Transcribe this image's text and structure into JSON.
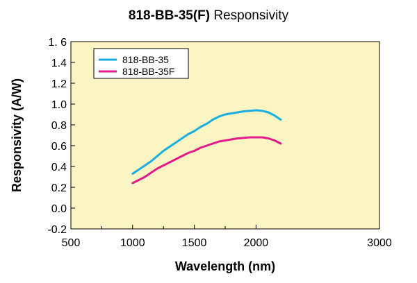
{
  "chart_data": {
    "type": "line",
    "title": "818-BB-35(F) Responsivity",
    "title_bold": "818-BB-35(F)",
    "title_rest": " Responsivity",
    "xlabel": "Wavelength (nm)",
    "ylabel": "Responsivity (A/W)",
    "xlim": [
      500,
      3000
    ],
    "ylim": [
      -0.2,
      1.6
    ],
    "xticks": [
      500,
      1000,
      1500,
      2000,
      3000
    ],
    "xtick_labels": [
      "500",
      "1000",
      "1500",
      "2000",
      "3000"
    ],
    "yticks": [
      1.6,
      1.4,
      1.2,
      1.0,
      0.8,
      0.6,
      0.4,
      0.2,
      0.0,
      -0.2
    ],
    "ytick_labels": [
      "1. 6",
      "1.4",
      "1.2",
      "1.0",
      "0.8",
      "0.6",
      "0.4",
      "0.2",
      "0.0",
      "-0.2"
    ],
    "legend_position": "top-left",
    "plot_background": "#faf5c3",
    "series": [
      {
        "name": "818-BB-35",
        "color": "#1aaee0",
        "x": [
          1000,
          1050,
          1100,
          1150,
          1200,
          1250,
          1300,
          1350,
          1400,
          1450,
          1500,
          1550,
          1600,
          1650,
          1700,
          1750,
          1800,
          1850,
          1900,
          1950,
          2000,
          2050,
          2100,
          2150,
          2200
        ],
        "values": [
          0.33,
          0.37,
          0.41,
          0.45,
          0.5,
          0.55,
          0.59,
          0.63,
          0.67,
          0.71,
          0.74,
          0.78,
          0.81,
          0.85,
          0.88,
          0.9,
          0.91,
          0.92,
          0.93,
          0.935,
          0.94,
          0.935,
          0.92,
          0.89,
          0.85
        ]
      },
      {
        "name": "818-BB-35F",
        "color": "#e6198a",
        "x": [
          1000,
          1050,
          1100,
          1150,
          1200,
          1250,
          1300,
          1350,
          1400,
          1450,
          1500,
          1550,
          1600,
          1650,
          1700,
          1750,
          1800,
          1850,
          1900,
          1950,
          2000,
          2050,
          2100,
          2150,
          2200
        ],
        "values": [
          0.24,
          0.27,
          0.3,
          0.34,
          0.38,
          0.41,
          0.44,
          0.47,
          0.5,
          0.53,
          0.55,
          0.58,
          0.6,
          0.62,
          0.64,
          0.65,
          0.66,
          0.67,
          0.675,
          0.68,
          0.68,
          0.68,
          0.67,
          0.65,
          0.62
        ]
      }
    ]
  }
}
